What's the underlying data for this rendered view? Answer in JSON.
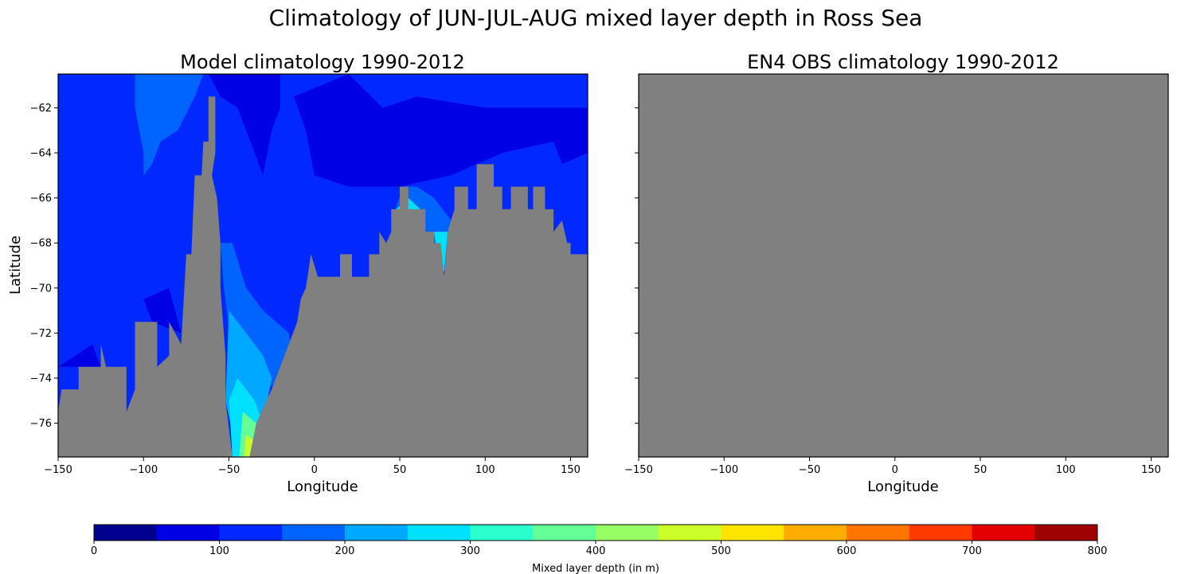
{
  "figure": {
    "suptitle": "Climatology of JUN-JUL-AUG mixed layer depth in Ross Sea"
  },
  "chart_data": [
    {
      "type": "contour",
      "title": "Model climatology 1990-2012",
      "xlabel": "Longitude",
      "ylabel": "Latitude",
      "xlim": [
        -150,
        160
      ],
      "ylim": [
        -77.5,
        -60.5
      ],
      "xticks": [
        -150,
        -100,
        -50,
        0,
        50,
        100,
        150
      ],
      "xtick_labels": [
        "−150",
        "−100",
        "−50",
        "0",
        "50",
        "100",
        "150"
      ],
      "yticks": [
        -62,
        -64,
        -66,
        -68,
        -70,
        -72,
        -74,
        -76
      ],
      "ytick_labels": [
        "−62",
        "−64",
        "−66",
        "−68",
        "−70",
        "−72",
        "−74",
        "−76"
      ],
      "background_fill": "#0028ff",
      "land_color": "#808080",
      "regions": [
        {
          "level": 200,
          "color": "#0064ff",
          "points": [
            [
              -150,
              -60.5
            ],
            [
              -120,
              -60.5
            ],
            [
              -105,
              -60.5
            ],
            [
              -105,
              -62
            ],
            [
              -100,
              -64
            ],
            [
              -100,
              -65
            ],
            [
              -95,
              -64.5
            ],
            [
              -90,
              -63.5
            ],
            [
              -80,
              -63
            ],
            [
              -70,
              -61.5
            ],
            [
              -65,
              -60.5
            ],
            [
              -150,
              -60.5
            ]
          ]
        },
        {
          "level": 50,
          "color": "#0000e4",
          "points": [
            [
              -62,
              -60.5
            ],
            [
              -20,
              -60.5
            ],
            [
              -20,
              -62
            ],
            [
              -25,
              -63
            ],
            [
              -30,
              -65
            ],
            [
              -35,
              -64
            ],
            [
              -45,
              -62
            ],
            [
              -55,
              -61.5
            ],
            [
              -62,
              -60.5
            ]
          ]
        },
        {
          "level": 50,
          "color": "#0000e4",
          "points": [
            [
              -12,
              -61.5
            ],
            [
              20,
              -60.5
            ],
            [
              40,
              -62
            ],
            [
              60,
              -61.5
            ],
            [
              100,
              -62
            ],
            [
              140,
              -62
            ],
            [
              160,
              -62
            ],
            [
              160,
              -64
            ],
            [
              145,
              -64.5
            ],
            [
              140,
              -63.5
            ],
            [
              110,
              -64
            ],
            [
              80,
              -65
            ],
            [
              50,
              -65.5
            ],
            [
              20,
              -65.5
            ],
            [
              0,
              -65
            ],
            [
              -5,
              -63
            ],
            [
              -12,
              -61.5
            ]
          ]
        },
        {
          "level": 50,
          "color": "#0000e4",
          "points": [
            [
              -150,
              -73.5
            ],
            [
              -140,
              -73
            ],
            [
              -130,
              -72.5
            ],
            [
              -125,
              -73.5
            ],
            [
              -150,
              -73.5
            ]
          ]
        },
        {
          "level": 50,
          "color": "#0000e4",
          "points": [
            [
              -100,
              -70.5
            ],
            [
              -85,
              -70
            ],
            [
              -78,
              -72
            ],
            [
              -95,
              -71.5
            ],
            [
              -100,
              -70.5
            ]
          ]
        },
        {
          "level": 200,
          "color": "#0064ff",
          "points": [
            [
              -55,
              -68
            ],
            [
              -48,
              -68
            ],
            [
              -40,
              -70
            ],
            [
              -30,
              -71
            ],
            [
              -15,
              -72
            ],
            [
              -10,
              -74
            ],
            [
              -20,
              -74.5
            ],
            [
              -35,
              -74
            ],
            [
              -48,
              -73
            ],
            [
              -53,
              -70
            ],
            [
              -55,
              -68
            ]
          ]
        },
        {
          "level": 200,
          "color": "#0064ff",
          "points": [
            [
              45,
              -67
            ],
            [
              52,
              -65.5
            ],
            [
              60,
              -65.5
            ],
            [
              70,
              -66
            ],
            [
              80,
              -67
            ],
            [
              90,
              -67.5
            ],
            [
              90,
              -68
            ],
            [
              70,
              -68
            ],
            [
              55,
              -67.5
            ],
            [
              45,
              -67
            ]
          ]
        },
        {
          "level": 250,
          "color": "#00a8ff",
          "points": [
            [
              -50,
              -71
            ],
            [
              -40,
              -72
            ],
            [
              -30,
              -73
            ],
            [
              -25,
              -74
            ],
            [
              -30,
              -76
            ],
            [
              -45,
              -77.5
            ],
            [
              -52,
              -75
            ],
            [
              -50,
              -71
            ]
          ]
        },
        {
          "level": 300,
          "color": "#00e0ff",
          "points": [
            [
              -45,
              -74
            ],
            [
              -35,
              -75
            ],
            [
              -30,
              -76
            ],
            [
              -35,
              -77.5
            ],
            [
              -48,
              -77.5
            ],
            [
              -50,
              -75
            ],
            [
              -45,
              -74
            ]
          ]
        },
        {
          "level": 400,
          "color": "#64ff97",
          "points": [
            [
              -42,
              -75.5
            ],
            [
              -34,
              -76
            ],
            [
              -32,
              -77.5
            ],
            [
              -44,
              -77.5
            ],
            [
              -42,
              -75.5
            ]
          ]
        },
        {
          "level": 500,
          "color": "#cdff2b",
          "points": [
            [
              -40,
              -76.5
            ],
            [
              -35,
              -76.8
            ],
            [
              -36,
              -77.5
            ],
            [
              -41,
              -77.5
            ],
            [
              -40,
              -76.5
            ]
          ]
        },
        {
          "level": 300,
          "color": "#00e0ff",
          "points": [
            [
              48,
              -66.5
            ],
            [
              55,
              -66
            ],
            [
              62,
              -66.5
            ],
            [
              60,
              -67.2
            ],
            [
              50,
              -67.2
            ],
            [
              48,
              -66.5
            ]
          ]
        },
        {
          "level": 300,
          "color": "#00e0ff",
          "points": [
            [
              70,
              -67.5
            ],
            [
              78,
              -67.5
            ],
            [
              76,
              -69.3
            ],
            [
              72,
              -68.5
            ],
            [
              70,
              -67.5
            ]
          ]
        }
      ],
      "land": [
        [
          -150,
          -77.5
        ],
        [
          -150,
          -75.5
        ],
        [
          -148,
          -74.5
        ],
        [
          -138,
          -74.5
        ],
        [
          -138,
          -73.5
        ],
        [
          -125,
          -73.5
        ],
        [
          -125,
          -72.5
        ],
        [
          -122,
          -73.5
        ],
        [
          -110,
          -73.5
        ],
        [
          -110,
          -75.5
        ],
        [
          -105,
          -74.5
        ],
        [
          -105,
          -71.5
        ],
        [
          -92,
          -71.5
        ],
        [
          -92,
          -73.5
        ],
        [
          -85,
          -73
        ],
        [
          -85,
          -71.5
        ],
        [
          -78,
          -72.5
        ],
        [
          -75,
          -68.5
        ],
        [
          -72,
          -68.5
        ],
        [
          -70,
          -65
        ],
        [
          -66,
          -65
        ],
        [
          -65,
          -63.5
        ],
        [
          -62,
          -63.5
        ],
        [
          -62,
          -61.5
        ],
        [
          -58,
          -61.5
        ],
        [
          -58,
          -64
        ],
        [
          -60,
          -65
        ],
        [
          -57,
          -66
        ],
        [
          -55,
          -68
        ],
        [
          -55,
          -70
        ],
        [
          -52,
          -73
        ],
        [
          -52,
          -75
        ],
        [
          -48,
          -77.5
        ],
        [
          -38,
          -77.5
        ],
        [
          -34,
          -76
        ],
        [
          -25,
          -74.5
        ],
        [
          -20,
          -73.5
        ],
        [
          -10,
          -71.5
        ],
        [
          -8,
          -70.5
        ],
        [
          -5,
          -70
        ],
        [
          -2,
          -68.5
        ],
        [
          2,
          -69.5
        ],
        [
          15,
          -69.5
        ],
        [
          15,
          -68.5
        ],
        [
          22,
          -68.5
        ],
        [
          22,
          -69.5
        ],
        [
          32,
          -69.5
        ],
        [
          32,
          -68.5
        ],
        [
          38,
          -68.5
        ],
        [
          38,
          -67.5
        ],
        [
          42,
          -68
        ],
        [
          45,
          -67.5
        ],
        [
          45,
          -66.5
        ],
        [
          50,
          -66.5
        ],
        [
          50,
          -65.5
        ],
        [
          55,
          -65.5
        ],
        [
          55,
          -66.5
        ],
        [
          65,
          -66.5
        ],
        [
          65,
          -67.5
        ],
        [
          70,
          -67.5
        ],
        [
          70,
          -68
        ],
        [
          74,
          -68
        ],
        [
          76,
          -69.5
        ],
        [
          78,
          -67.5
        ],
        [
          82,
          -66.5
        ],
        [
          82,
          -65.5
        ],
        [
          90,
          -65.5
        ],
        [
          90,
          -66.5
        ],
        [
          95,
          -66.5
        ],
        [
          95,
          -64.5
        ],
        [
          105,
          -64.5
        ],
        [
          105,
          -65.5
        ],
        [
          110,
          -65.5
        ],
        [
          110,
          -66.5
        ],
        [
          115,
          -66.5
        ],
        [
          115,
          -65.5
        ],
        [
          125,
          -65.5
        ],
        [
          125,
          -66.5
        ],
        [
          128,
          -66.5
        ],
        [
          128,
          -65.5
        ],
        [
          135,
          -65.5
        ],
        [
          135,
          -66.5
        ],
        [
          140,
          -66.5
        ],
        [
          140,
          -67.5
        ],
        [
          145,
          -67
        ],
        [
          148,
          -68
        ],
        [
          150,
          -68
        ],
        [
          150,
          -68.5
        ],
        [
          160,
          -68.5
        ],
        [
          160,
          -77.5
        ]
      ]
    },
    {
      "type": "contour",
      "title": "EN4 OBS climatology 1990-2012",
      "xlabel": "Longitude",
      "ylabel": "",
      "xlim": [
        -150,
        160
      ],
      "ylim": [
        -77.5,
        -60.5
      ],
      "xticks": [
        -150,
        -100,
        -50,
        0,
        50,
        100,
        150
      ],
      "xtick_labels": [
        "−150",
        "−100",
        "−50",
        "0",
        "50",
        "100",
        "150"
      ],
      "yticks": [
        -62,
        -64,
        -66,
        -68,
        -70,
        -72,
        -74,
        -76
      ],
      "ytick_labels": [],
      "fill": "#808080",
      "regions": [],
      "land": []
    }
  ],
  "colorbar": {
    "label": "Mixed layer depth (in m)",
    "range": [
      0,
      800
    ],
    "levels": [
      0,
      50,
      100,
      150,
      200,
      250,
      300,
      350,
      400,
      450,
      500,
      550,
      600,
      650,
      700,
      750,
      800
    ],
    "colors": [
      "#00008f",
      "#0000e4",
      "#0028ff",
      "#0064ff",
      "#00a8ff",
      "#00e0ff",
      "#2bffcd",
      "#64ff97",
      "#97ff64",
      "#cdff2b",
      "#ffe400",
      "#ffab00",
      "#ff7500",
      "#ff3b00",
      "#e40000",
      "#9f0000"
    ],
    "ticks": [
      0,
      100,
      200,
      300,
      400,
      500,
      600,
      700,
      800
    ],
    "tick_labels": [
      "0",
      "100",
      "200",
      "300",
      "400",
      "500",
      "600",
      "700",
      "800"
    ]
  }
}
